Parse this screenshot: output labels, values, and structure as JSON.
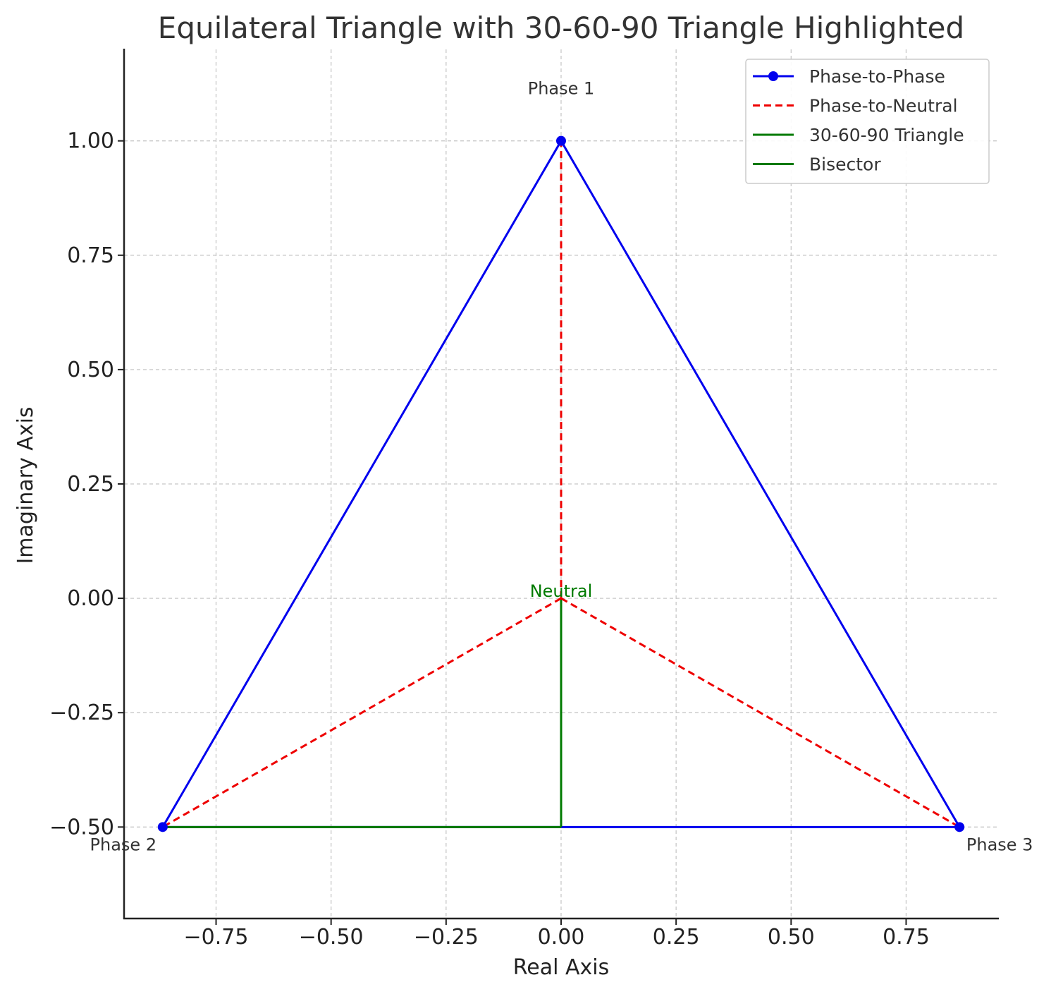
{
  "chart_data": {
    "type": "line",
    "title": "Equilateral Triangle with 30-60-90 Triangle Highlighted",
    "xlabel": "Real Axis",
    "ylabel": "Imaginary Axis",
    "xlim": [
      -0.95,
      0.95
    ],
    "ylim": [
      -0.7,
      1.2
    ],
    "xticks": [
      -0.75,
      -0.5,
      -0.25,
      0.0,
      0.25,
      0.5,
      0.75
    ],
    "xtick_labels": [
      "−0.75",
      "−0.50",
      "−0.25",
      "0.00",
      "0.25",
      "0.50",
      "0.75"
    ],
    "yticks": [
      1.0,
      0.75,
      0.5,
      0.25,
      0.0,
      -0.25,
      -0.5
    ],
    "ytick_labels": [
      "1.00",
      "0.75",
      "0.50",
      "0.25",
      "0.00",
      "−0.25",
      "−0.50"
    ],
    "grid": true,
    "legend_position": "top-right",
    "series": [
      {
        "name": "Phase-to-Phase",
        "color": "#0000ee",
        "style": "solid",
        "marker": "circle",
        "x": [
          0.0,
          -0.866,
          0.866,
          0.0
        ],
        "y": [
          1.0,
          -0.5,
          -0.5,
          1.0
        ]
      },
      {
        "name": "Phase-to-Neutral",
        "color": "#ee0000",
        "style": "dashed",
        "marker": "none",
        "segments": [
          {
            "x": [
              0.0,
              0.0
            ],
            "y": [
              0.0,
              1.0
            ]
          },
          {
            "x": [
              0.0,
              -0.866
            ],
            "y": [
              0.0,
              -0.5
            ]
          },
          {
            "x": [
              0.0,
              0.866
            ],
            "y": [
              0.0,
              -0.5
            ]
          }
        ]
      },
      {
        "name": "30-60-90 Triangle",
        "color": "#007a00",
        "style": "solid",
        "marker": "none",
        "x": [
          -0.866,
          0.0
        ],
        "y": [
          -0.5,
          -0.5
        ]
      },
      {
        "name": "Bisector",
        "color": "#007a00",
        "style": "solid",
        "marker": "none",
        "x": [
          0.0,
          0.0
        ],
        "y": [
          0.0,
          -0.5
        ]
      }
    ],
    "annotations": [
      {
        "text": "Phase 1",
        "x": 0.0,
        "y": 1.0,
        "color": "#333333",
        "anchor": "above"
      },
      {
        "text": "Phase 2",
        "x": -0.866,
        "y": -0.5,
        "color": "#333333",
        "anchor": "below-left"
      },
      {
        "text": "Phase 3",
        "x": 0.866,
        "y": -0.5,
        "color": "#333333",
        "anchor": "below-right"
      },
      {
        "text": "Neutral",
        "x": 0.0,
        "y": 0.0,
        "color": "#007a00",
        "anchor": "above"
      }
    ]
  }
}
